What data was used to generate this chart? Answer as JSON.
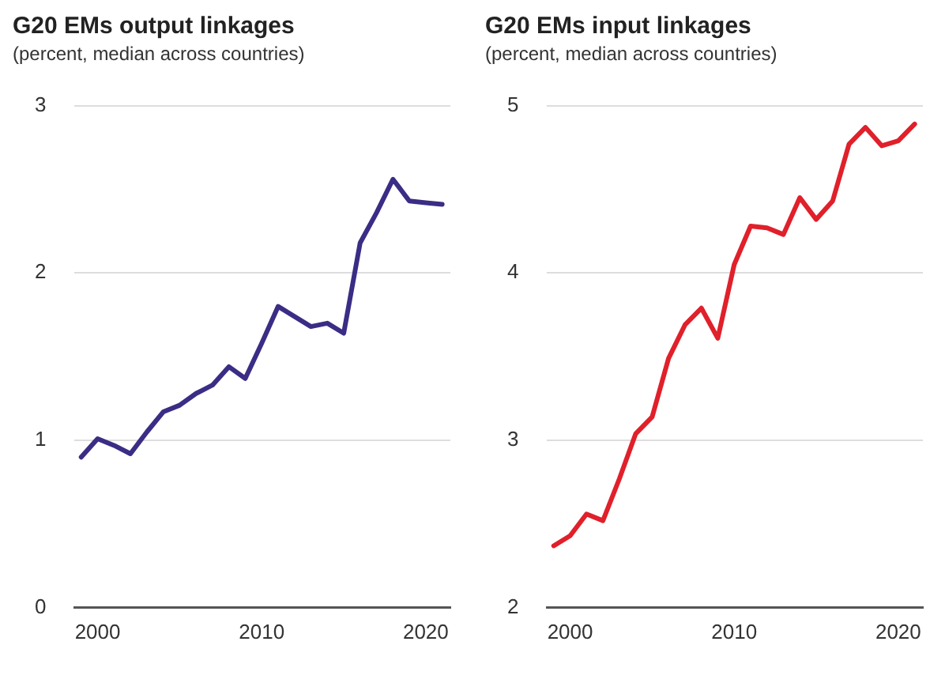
{
  "chart_data": [
    {
      "type": "line",
      "title": "G20 EMs output linkages",
      "subtitle": "(percent, median across countries)",
      "x": [
        1999,
        2000,
        2001,
        2002,
        2003,
        2004,
        2005,
        2006,
        2007,
        2008,
        2009,
        2010,
        2011,
        2012,
        2013,
        2014,
        2015,
        2016,
        2017,
        2018,
        2019,
        2020,
        2021
      ],
      "series": [
        {
          "color": "#3a2d85",
          "values": [
            0.9,
            1.01,
            0.97,
            0.92,
            1.05,
            1.17,
            1.21,
            1.28,
            1.33,
            1.44,
            1.37,
            1.58,
            1.8,
            1.74,
            1.68,
            1.7,
            1.64,
            2.18,
            2.36,
            2.56,
            2.43,
            2.42,
            2.41
          ]
        }
      ],
      "xlim": [
        1998.6,
        2021.5
      ],
      "xticks": [
        2000,
        2010,
        2020
      ],
      "ylim": [
        0,
        3
      ],
      "yticks": [
        0,
        1,
        2,
        3
      ],
      "grid": "y",
      "legend": false,
      "marker": "none",
      "line_style": "solid"
    },
    {
      "type": "line",
      "title": "G20 EMs input linkages",
      "subtitle": "(percent, median across countries)",
      "x": [
        1999,
        2000,
        2001,
        2002,
        2003,
        2004,
        2005,
        2006,
        2007,
        2008,
        2009,
        2010,
        2011,
        2012,
        2013,
        2014,
        2015,
        2016,
        2017,
        2018,
        2019,
        2020,
        2021
      ],
      "series": [
        {
          "color": "#e0202a",
          "values": [
            2.37,
            2.43,
            2.56,
            2.52,
            2.77,
            3.04,
            3.14,
            3.49,
            3.69,
            3.79,
            3.61,
            4.05,
            4.28,
            4.27,
            4.23,
            4.45,
            4.32,
            4.43,
            4.77,
            4.87,
            4.76,
            4.79,
            4.89
          ]
        }
      ],
      "xlim": [
        1998.6,
        2021.5
      ],
      "xticks": [
        2000,
        2010,
        2020
      ],
      "ylim": [
        2,
        5
      ],
      "yticks": [
        2,
        3,
        4,
        5
      ],
      "grid": "y",
      "legend": false,
      "marker": "none",
      "line_style": "solid"
    }
  ]
}
